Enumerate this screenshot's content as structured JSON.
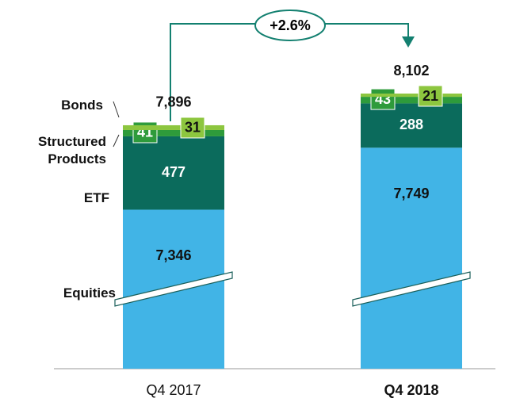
{
  "chart_data": {
    "type": "stacked_bar",
    "categories": [
      "Q4 2017",
      "Q4 2018"
    ],
    "series": [
      {
        "name": "Equities",
        "color": "#41b4e6",
        "values": [
          7346,
          7749
        ],
        "value_labels": [
          "7,346",
          "7,749"
        ]
      },
      {
        "name": "ETF",
        "color": "#0b6b5c",
        "values": [
          477,
          288
        ]
      },
      {
        "name": "Structured Products",
        "color": "#2e9b3b",
        "values": [
          41,
          43
        ]
      },
      {
        "name": "Bonds",
        "color": "#8dc63f",
        "values": [
          31,
          21
        ]
      }
    ],
    "totals": {
      "values": [
        7896,
        8102
      ],
      "value_labels": [
        "7,896",
        "8,102"
      ]
    },
    "annotation": "+2.6%"
  }
}
